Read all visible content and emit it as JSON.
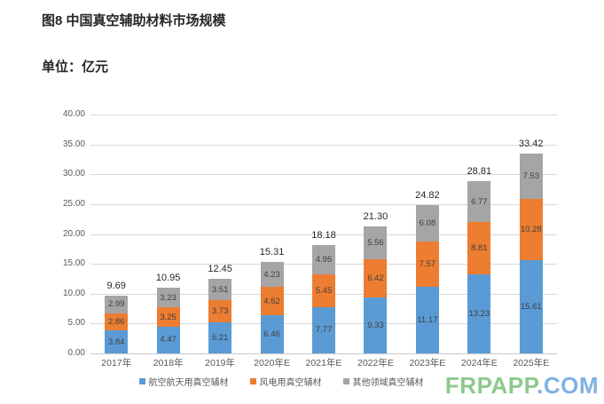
{
  "header": {
    "title": "图8 中国真空辅助材料市场规模",
    "unit": "单位：亿元"
  },
  "watermark": {
    "part1": "FRPAPP",
    "part2": ".COM",
    "color1": "#8CC98C",
    "color2": "#7FB2E4"
  },
  "chart_data": {
    "type": "bar",
    "stacked": true,
    "title": "图8 中国真空辅助材料市场规模",
    "ylabel": "亿元",
    "xlabel": "",
    "grid": true,
    "legend_position": "bottom",
    "y_axis": {
      "min": 0,
      "max": 40,
      "step": 5
    },
    "categories": [
      "2017年",
      "2018年",
      "2019年",
      "2020年E",
      "2021年E",
      "2022年E",
      "2023年E",
      "2024年E",
      "2025年E"
    ],
    "series": [
      {
        "name": "航空航天用真空辅材",
        "color": "#5B9BD5",
        "values": [
          3.84,
          4.47,
          5.21,
          6.46,
          7.77,
          9.33,
          11.17,
          13.23,
          15.61
        ]
      },
      {
        "name": "风电用真空辅材",
        "color": "#ED7D31",
        "values": [
          2.86,
          3.25,
          3.73,
          4.62,
          5.45,
          6.42,
          7.57,
          8.81,
          10.28
        ]
      },
      {
        "name": "其他领域真空辅材",
        "color": "#A5A5A5",
        "values": [
          2.99,
          3.23,
          3.51,
          4.23,
          4.95,
          5.56,
          6.08,
          6.77,
          7.53
        ]
      }
    ],
    "totals": [
      "9.69",
      "10.95",
      "12.45",
      "15.31",
      "18.18",
      "21.30",
      "24.82",
      "28.81",
      "33.42"
    ],
    "styles": {
      "grid_color": "#D9D9D9",
      "axis_text_color": "#595959",
      "segment_label_color": "#3F3F3F",
      "total_label_color": "#262626"
    }
  }
}
